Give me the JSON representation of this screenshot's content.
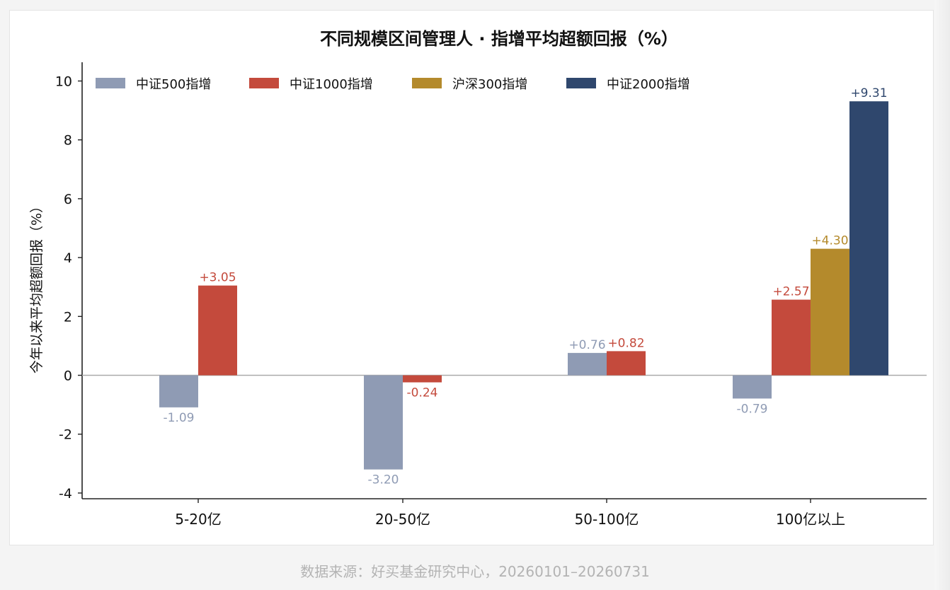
{
  "chart_data": {
    "type": "bar",
    "title": "不同规模区间管理人 · 指增平均超额回报（%）",
    "xlabel": "",
    "ylabel": "今年以来平均超额回报（%）",
    "ylim": [
      -4.2,
      10.6
    ],
    "yticks": [
      -4,
      -2,
      0,
      2,
      4,
      6,
      8,
      10
    ],
    "categories": [
      "5-20亿",
      "20-50亿",
      "50-100亿",
      "100亿以上"
    ],
    "series": [
      {
        "name": "中证500指增",
        "color": "#8f9bb4",
        "values": [
          -1.09,
          -3.2,
          0.76,
          -0.79
        ],
        "labels": [
          "-1.09",
          "-3.20",
          "+0.76",
          "-0.79"
        ]
      },
      {
        "name": "中证1000指增",
        "color": "#c44a3c",
        "values": [
          3.05,
          -0.24,
          0.82,
          2.57
        ],
        "labels": [
          "+3.05",
          "-0.24",
          "+0.82",
          "+2.57"
        ]
      },
      {
        "name": "沪深300指增",
        "color": "#b48a2c",
        "values": [
          null,
          null,
          null,
          4.3
        ],
        "labels": [
          null,
          null,
          null,
          "+4.30"
        ]
      },
      {
        "name": "中证2000指增",
        "color": "#2f476d",
        "values": [
          null,
          null,
          null,
          9.31
        ],
        "labels": [
          null,
          null,
          null,
          "+9.31"
        ]
      }
    ],
    "legend": "top-left",
    "grid": false
  },
  "source_note": "数据来源：好买基金研究中心，20260101–20260731"
}
